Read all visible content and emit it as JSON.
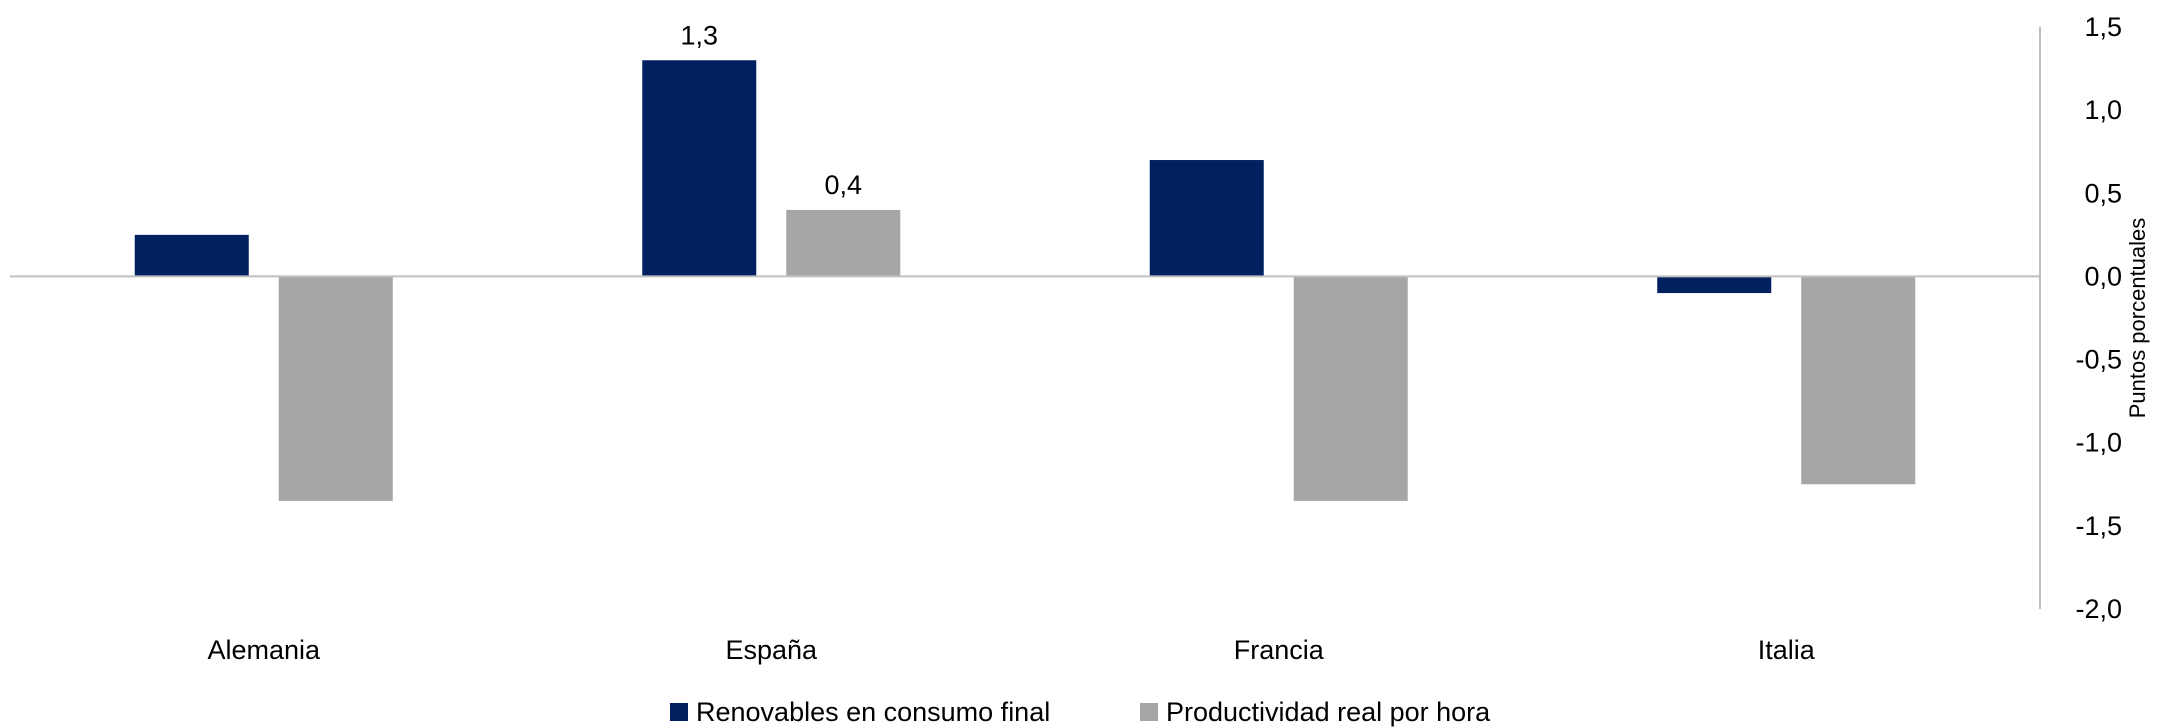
{
  "chart_data": {
    "type": "bar",
    "title": "",
    "xlabel": "",
    "ylabel": "Puntos porcentuales",
    "ylim": [
      -2.0,
      1.5
    ],
    "ytick_step": 0.5,
    "y_axis_side": "right",
    "decimal_separator": ",",
    "grid": false,
    "legend_position": "bottom",
    "categories": [
      "Alemania",
      "España",
      "Francia",
      "Italia"
    ],
    "series": [
      {
        "name": "Renovables en consumo final",
        "color": "#002060",
        "values": [
          0.25,
          1.3,
          0.7,
          -0.1
        ],
        "data_labels": [
          null,
          "1,3",
          null,
          null
        ]
      },
      {
        "name": "Productividad real por hora",
        "color": "#A6A6A6",
        "values": [
          -1.35,
          0.4,
          -1.35,
          -1.25
        ],
        "data_labels": [
          null,
          "0,4",
          null,
          null
        ]
      }
    ]
  }
}
